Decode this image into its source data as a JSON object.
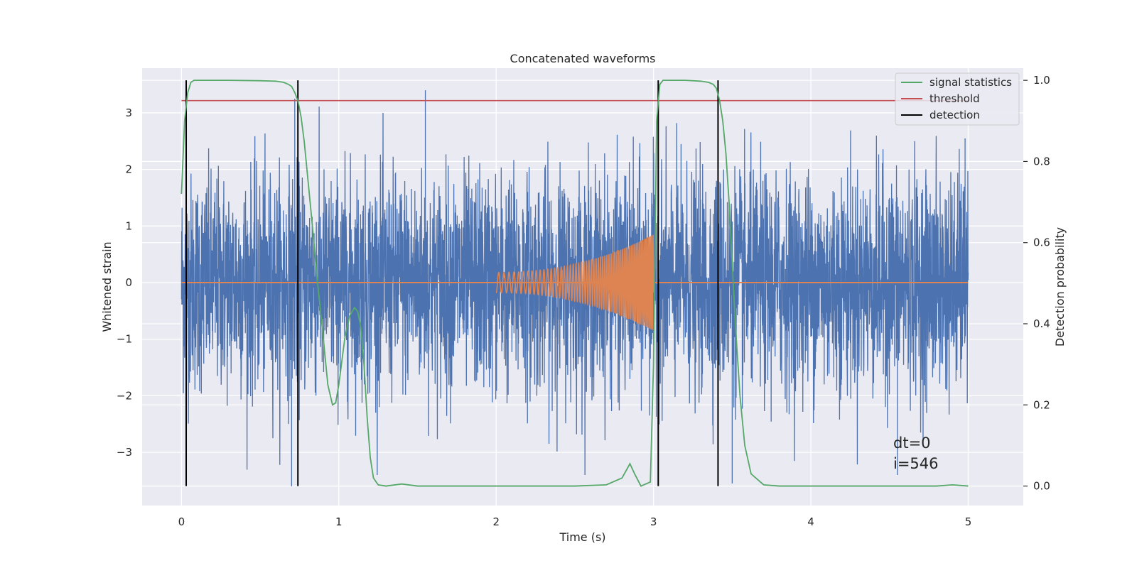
{
  "chart_data": {
    "type": "line",
    "title": "Concatenated waveforms",
    "xlabel": "Time (s)",
    "ylabel": "Whitened strain",
    "ylabel_right": "Detection probability",
    "xlim": [
      -0.25,
      5.35
    ],
    "ylim": [
      -3.94,
      3.79
    ],
    "ylim_right": [
      -0.048,
      1.03
    ],
    "x_ticks": [
      "0",
      "1",
      "2",
      "3",
      "4",
      "5"
    ],
    "x_tick_values": [
      0,
      1,
      2,
      3,
      4,
      5
    ],
    "y_ticks": [
      "−3",
      "−2",
      "−1",
      "0",
      "1",
      "2",
      "3"
    ],
    "y_tick_values": [
      -3,
      -2,
      -1,
      0,
      1,
      2,
      3
    ],
    "y_right_ticks": [
      "0.0",
      "0.2",
      "0.4",
      "0.6",
      "0.8",
      "1.0"
    ],
    "y_right_tick_values": [
      0,
      0.2,
      0.4,
      0.6,
      0.8,
      1.0
    ],
    "grid": true,
    "legend_position": "upper-right",
    "colors": {
      "strain": "#4c72b0",
      "waveform": "#dd8452",
      "signal_statistics": "#55a868",
      "threshold": "#c44e52",
      "detection": "#000000",
      "plot_background": "#eaeaf2",
      "grid": "#ffffff"
    },
    "series": [
      {
        "name": "",
        "role": "whitened-strain-noise",
        "axis": "left",
        "x_range": [
          0,
          5
        ],
        "amplitude": 3.4,
        "visible_extremes": [
          {
            "x": 0.7,
            "y": -3.6
          },
          {
            "x": 0.72,
            "y": 3.25
          },
          {
            "x": 1.55,
            "y": 3.4
          },
          {
            "x": 3.5,
            "y": -3.55
          },
          {
            "x": 4.55,
            "y": -3.4
          },
          {
            "x": 4.98,
            "y": 2.55
          }
        ]
      },
      {
        "name": "",
        "role": "injected-chirp",
        "axis": "left",
        "x_range": [
          2.0,
          3.0
        ],
        "amplitude_start": 0.18,
        "amplitude_end": 0.85,
        "frequency_start_hz": 30,
        "frequency_end_hz": 110
      },
      {
        "name": "signal statistics",
        "axis": "right",
        "x": [
          0,
          0.02,
          0.04,
          0.06,
          0.08,
          0.1,
          0.15,
          0.3,
          0.5,
          0.6,
          0.65,
          0.68,
          0.7,
          0.72,
          0.74,
          0.76,
          0.78,
          0.8,
          0.83,
          0.86,
          0.9,
          0.93,
          0.96,
          0.98,
          1.0,
          1.02,
          1.04,
          1.07,
          1.1,
          1.12,
          1.14,
          1.16,
          1.18,
          1.2,
          1.22,
          1.25,
          1.3,
          1.4,
          1.5,
          2.0,
          2.5,
          2.7,
          2.8,
          2.85,
          2.88,
          2.92,
          2.98,
          3.0,
          3.02,
          3.04,
          3.06,
          3.1,
          3.2,
          3.3,
          3.35,
          3.38,
          3.4,
          3.42,
          3.44,
          3.46,
          3.48,
          3.5,
          3.52,
          3.55,
          3.58,
          3.62,
          3.7,
          3.8,
          4.0,
          4.5,
          4.8,
          4.9,
          5.0
        ],
        "y": [
          0.72,
          0.9,
          0.97,
          0.995,
          1.0,
          1.0,
          1.0,
          1.0,
          0.999,
          0.998,
          0.995,
          0.99,
          0.985,
          0.97,
          0.95,
          0.91,
          0.85,
          0.77,
          0.65,
          0.52,
          0.37,
          0.25,
          0.2,
          0.205,
          0.25,
          0.31,
          0.37,
          0.42,
          0.44,
          0.43,
          0.39,
          0.3,
          0.17,
          0.07,
          0.02,
          0.003,
          0.0,
          0.005,
          0.0,
          0.0,
          0.0,
          0.003,
          0.02,
          0.055,
          0.03,
          0.0,
          0.01,
          0.3,
          0.9,
          0.99,
          1.0,
          1.0,
          1.0,
          0.998,
          0.995,
          0.99,
          0.98,
          0.95,
          0.9,
          0.82,
          0.7,
          0.55,
          0.4,
          0.22,
          0.1,
          0.03,
          0.003,
          0.0,
          0.0,
          0.0,
          0.0,
          0.003,
          0.0
        ]
      },
      {
        "name": "threshold",
        "axis": "right",
        "x": [
          0,
          5.0
        ],
        "y": [
          0.95,
          0.95
        ]
      },
      {
        "name": "detection",
        "axis": "right",
        "x_positions": [
          0.03,
          0.74,
          3.03,
          3.41
        ],
        "y_range": [
          0,
          1.0
        ]
      }
    ],
    "annotations": [
      "dt=0",
      "i=546"
    ]
  }
}
